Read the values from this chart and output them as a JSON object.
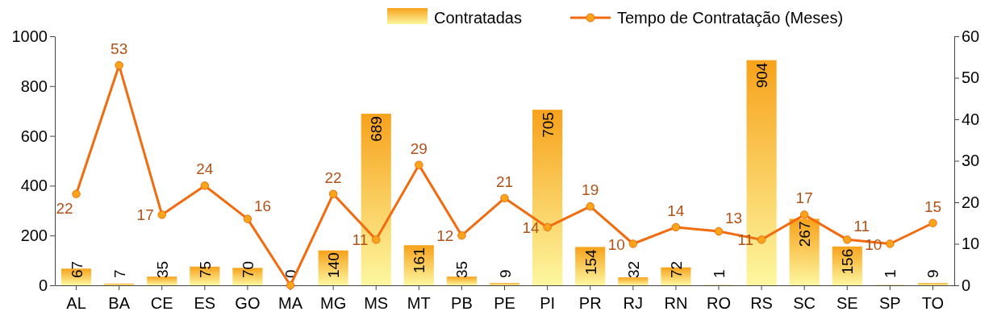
{
  "chart_data": {
    "type": "bar",
    "categories": [
      "AL",
      "BA",
      "CE",
      "ES",
      "GO",
      "MA",
      "MG",
      "MS",
      "MT",
      "PB",
      "PE",
      "PI",
      "PR",
      "RJ",
      "RN",
      "RO",
      "RS",
      "SC",
      "SE",
      "SP",
      "TO"
    ],
    "series": [
      {
        "name": "Contratadas",
        "color": "#f7a21b",
        "values": [
          67,
          7,
          35,
          75,
          70,
          0,
          140,
          689,
          161,
          35,
          9,
          705,
          154,
          32,
          72,
          1,
          904,
          267,
          156,
          1,
          9
        ]
      },
      {
        "name": "Tempo de Contratação (Meses)",
        "type": "line",
        "axis": "y2",
        "color": "#f26b0f",
        "values": [
          22,
          53,
          17,
          24,
          16,
          0,
          22,
          11,
          29,
          12,
          21,
          14,
          19,
          10,
          14,
          13,
          11,
          17,
          11,
          10,
          15
        ],
        "value_labels": [
          "22",
          "53",
          "17",
          "24",
          "16",
          null,
          "22",
          "11",
          "29",
          "12",
          "21",
          "14",
          "19",
          "10",
          "14",
          "13",
          "11",
          "17",
          "11",
          "10",
          "15"
        ]
      }
    ],
    "ylim": [
      0,
      1000
    ],
    "yticks": [
      0,
      200,
      400,
      600,
      800,
      1000
    ],
    "y2lim": [
      0,
      60
    ],
    "y2ticks": [
      0,
      10,
      20,
      30,
      40,
      50,
      60
    ],
    "marker": "circle",
    "data_labels": true,
    "legend": "top right",
    "grid": false
  }
}
